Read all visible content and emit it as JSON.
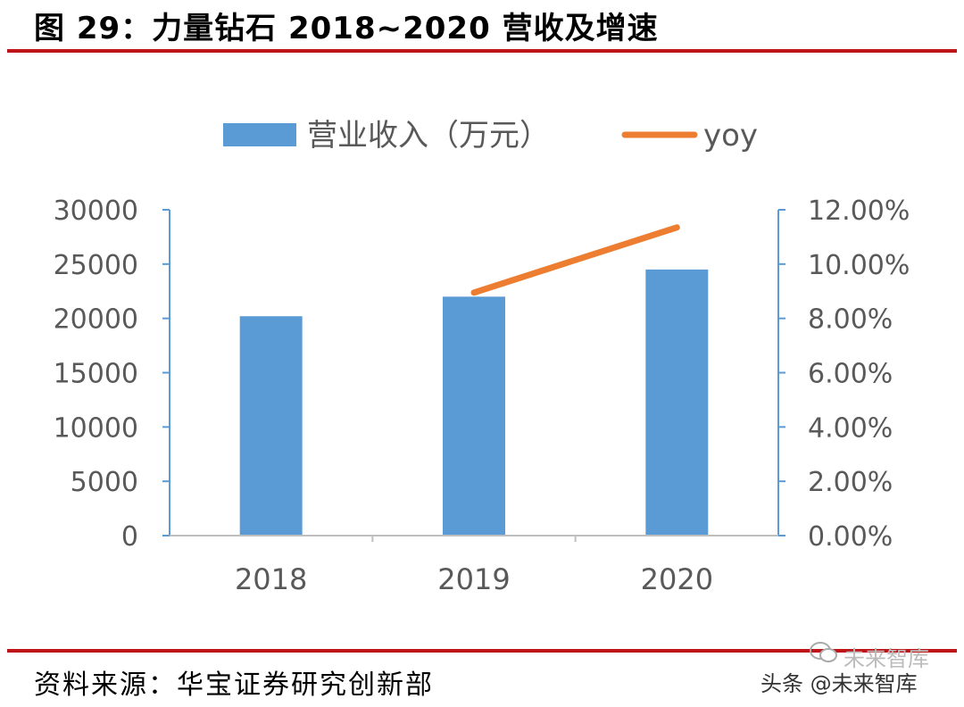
{
  "figure": {
    "title": "图 29：力量钻石 2018~2020 营收及增速",
    "source": "资料来源：华宝证券研究创新部",
    "watermark": "头条 @未来智库",
    "watermark_brand": "未来智库"
  },
  "colors": {
    "bar": "#5b9bd5",
    "line": "#ed7d31",
    "rule": "#c0141b",
    "axis": "#5b9bd5",
    "tick_text": "#595959"
  },
  "chart_data": {
    "type": "bar",
    "categories": [
      "2018",
      "2019",
      "2020"
    ],
    "series": [
      {
        "name": "营业收入（万元）",
        "type": "bar",
        "axis": "left",
        "values": [
          20200,
          22000,
          24500
        ]
      },
      {
        "name": "yoy",
        "type": "line",
        "axis": "right",
        "values": [
          null,
          0.0895,
          0.1135
        ]
      }
    ],
    "y_left": {
      "min": 0,
      "max": 30000,
      "ticks": [
        "0",
        "5000",
        "10000",
        "15000",
        "20000",
        "25000",
        "30000"
      ]
    },
    "y_right": {
      "min": 0,
      "max": 0.12,
      "ticks": [
        "0.00%",
        "2.00%",
        "4.00%",
        "6.00%",
        "8.00%",
        "10.00%",
        "12.00%"
      ]
    },
    "legend_position": "top",
    "grid": false
  }
}
